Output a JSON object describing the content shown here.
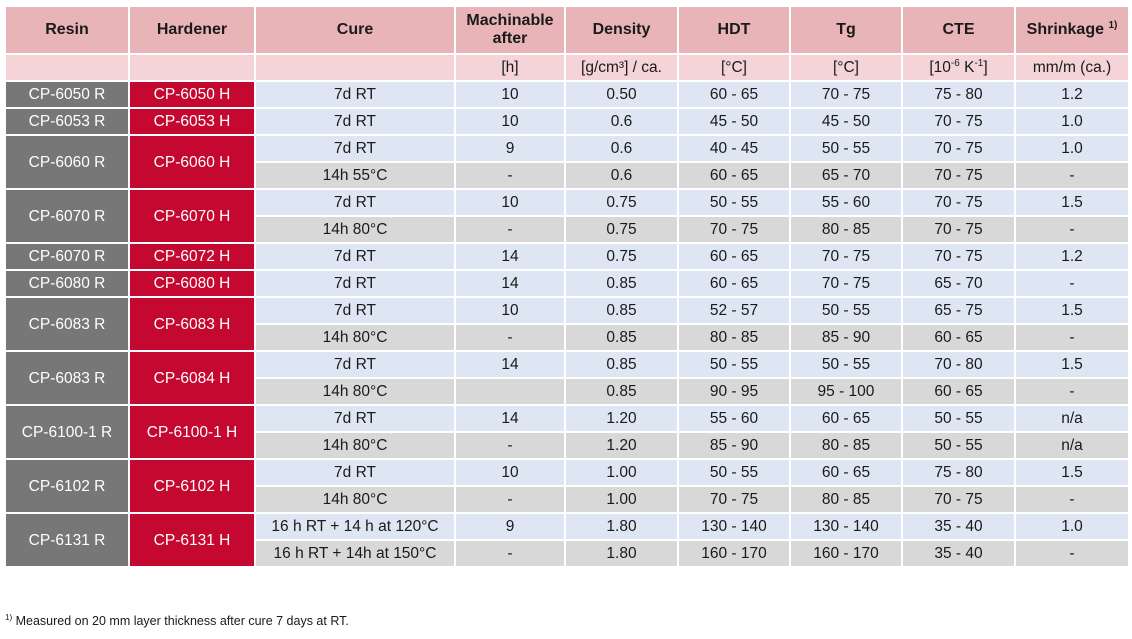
{
  "headers": {
    "resin": "Resin",
    "hardener": "Hardener",
    "cure": "Cure",
    "machinable_line1": "Machinable",
    "machinable_line2": "after",
    "density": "Density",
    "hdt": "HDT",
    "tg": "Tg",
    "cte": "CTE",
    "shrinkage": "Shrinkage",
    "shrinkage_note_mark": "1)"
  },
  "units": {
    "resin": "",
    "hardener": "",
    "cure": "",
    "machinable": "[h]",
    "density": "[g/cm³] / ca.",
    "hdt": "[°C]",
    "tg": "[°C]",
    "cte_prefix": "[10",
    "cte_exp1": "-6",
    "cte_mid": " K",
    "cte_exp2": "-1",
    "cte_suffix": "]",
    "shrinkage": "mm/m (ca.)"
  },
  "groups": [
    {
      "resin": "CP-6050 R",
      "hardener": "CP-6050 H",
      "rows": [
        {
          "cure": "7d RT",
          "mach": "10",
          "density": "0.50",
          "hdt": "60 - 65",
          "tg": "70 - 75",
          "cte": "75 - 80",
          "shrink": "1.2"
        }
      ]
    },
    {
      "resin": "CP-6053 R",
      "hardener": "CP-6053 H",
      "rows": [
        {
          "cure": "7d RT",
          "mach": "10",
          "density": "0.6",
          "hdt": "45 - 50",
          "tg": "45 - 50",
          "cte": "70 - 75",
          "shrink": "1.0"
        }
      ]
    },
    {
      "resin": "CP-6060 R",
      "hardener": "CP-6060 H",
      "rows": [
        {
          "cure": "7d RT",
          "mach": "9",
          "density": "0.6",
          "hdt": "40 - 45",
          "tg": "50 - 55",
          "cte": "70 - 75",
          "shrink": "1.0"
        },
        {
          "cure": "14h 55°C",
          "mach": "-",
          "density": "0.6",
          "hdt": "60 - 65",
          "tg": "65 - 70",
          "cte": "70 - 75",
          "shrink": "-"
        }
      ]
    },
    {
      "resin": "CP-6070 R",
      "hardener": "CP-6070 H",
      "rows": [
        {
          "cure": "7d RT",
          "mach": "10",
          "density": "0.75",
          "hdt": "50 - 55",
          "tg": "55 - 60",
          "cte": "70 - 75",
          "shrink": "1.5"
        },
        {
          "cure": "14h 80°C",
          "mach": "-",
          "density": "0.75",
          "hdt": "70 - 75",
          "tg": "80 - 85",
          "cte": "70 - 75",
          "shrink": "-"
        }
      ]
    },
    {
      "resin": "CP-6070 R",
      "hardener": "CP-6072 H",
      "rows": [
        {
          "cure": "7d RT",
          "mach": "14",
          "density": "0.75",
          "hdt": "60 - 65",
          "tg": "70 - 75",
          "cte": "70 - 75",
          "shrink": "1.2"
        }
      ]
    },
    {
      "resin": "CP-6080 R",
      "hardener": "CP-6080 H",
      "rows": [
        {
          "cure": "7d RT",
          "mach": "14",
          "density": "0.85",
          "hdt": "60 - 65",
          "tg": "70 - 75",
          "cte": "65 - 70",
          "shrink": "-"
        }
      ]
    },
    {
      "resin": "CP-6083 R",
      "hardener": "CP-6083 H",
      "rows": [
        {
          "cure": "7d RT",
          "mach": "10",
          "density": "0.85",
          "hdt": "52 - 57",
          "tg": "50 - 55",
          "cte": "65 - 75",
          "shrink": "1.5"
        },
        {
          "cure": "14h 80°C",
          "mach": "-",
          "density": "0.85",
          "hdt": "80 - 85",
          "tg": "85 - 90",
          "cte": "60 - 65",
          "shrink": "-"
        }
      ]
    },
    {
      "resin": "CP-6083 R",
      "hardener": "CP-6084 H",
      "rows": [
        {
          "cure": "7d RT",
          "mach": "14",
          "density": "0.85",
          "hdt": "50 - 55",
          "tg": "50 - 55",
          "cte": "70 - 80",
          "shrink": "1.5"
        },
        {
          "cure": "14h 80°C",
          "mach": "",
          "density": "0.85",
          "hdt": "90 - 95",
          "tg": "95 - 100",
          "cte": "60 - 65",
          "shrink": "-"
        }
      ]
    },
    {
      "resin": "CP-6100-1 R",
      "hardener": "CP-6100-1 H",
      "rows": [
        {
          "cure": "7d RT",
          "mach": "14",
          "density": "1.20",
          "hdt": "55 - 60",
          "tg": "60 - 65",
          "cte": "50 - 55",
          "shrink": "n/a"
        },
        {
          "cure": "14h 80°C",
          "mach": "-",
          "density": "1.20",
          "hdt": "85 - 90",
          "tg": "80 - 85",
          "cte": "50 - 55",
          "shrink": "n/a"
        }
      ]
    },
    {
      "resin": "CP-6102 R",
      "hardener": "CP-6102 H",
      "rows": [
        {
          "cure": "7d RT",
          "mach": "10",
          "density": "1.00",
          "hdt": "50 - 55",
          "tg": "60 - 65",
          "cte": "75 - 80",
          "shrink": "1.5"
        },
        {
          "cure": "14h 80°C",
          "mach": "-",
          "density": "1.00",
          "hdt": "70 - 75",
          "tg": "80 - 85",
          "cte": "70 - 75",
          "shrink": "-"
        }
      ]
    },
    {
      "resin": "CP-6131 R",
      "hardener": "CP-6131 H",
      "rows": [
        {
          "cure": "16 h RT + 14 h at 120°C",
          "mach": "9",
          "density": "1.80",
          "hdt": "130 - 140",
          "tg": "130 - 140",
          "cte": "35 - 40",
          "shrink": "1.0"
        },
        {
          "cure": "16 h RT + 14h at 150°C",
          "mach": "-",
          "density": "1.80",
          "hdt": "160 - 170",
          "tg": "160 - 170",
          "cte": "35 - 40",
          "shrink": "-"
        }
      ]
    }
  ],
  "footnote": {
    "mark": "1)",
    "text": " Measured on 20 mm layer thickness after cure 7 days at RT."
  },
  "colors": {
    "header_bg": "#e8b4b8",
    "units_bg": "#f4d4d6",
    "resin_bg": "#777777",
    "hardener_bg": "#c5082f",
    "row_blue": "#dde6f2",
    "row_gray": "#d8d8d8"
  }
}
